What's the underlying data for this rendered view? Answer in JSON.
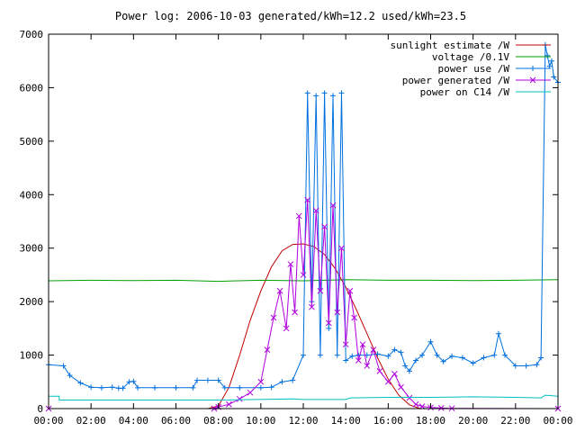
{
  "chart_data": {
    "type": "line",
    "title": "Power log: 2006-10-03 generated/kWh=12.2 used/kWh=23.5",
    "xlabel": "",
    "ylabel": "",
    "xlim": [
      0,
      24
    ],
    "ylim": [
      0,
      7000
    ],
    "x_tick_labels": [
      "00:00",
      "02:00",
      "04:00",
      "06:00",
      "08:00",
      "10:00",
      "12:00",
      "14:00",
      "16:00",
      "18:00",
      "20:00",
      "22:00",
      "00:00"
    ],
    "y_tick_labels": [
      "0",
      "1000",
      "2000",
      "3000",
      "4000",
      "5000",
      "6000",
      "7000"
    ],
    "legend_position": "top-right",
    "grid": false,
    "series": [
      {
        "name": "sunlight estimate /W",
        "color": "#c00000",
        "marker": "none",
        "points": [
          [
            0,
            0
          ],
          [
            7.5,
            0
          ],
          [
            8,
            50
          ],
          [
            8.5,
            400
          ],
          [
            9,
            1000
          ],
          [
            9.5,
            1650
          ],
          [
            10,
            2200
          ],
          [
            10.5,
            2650
          ],
          [
            11,
            2950
          ],
          [
            11.5,
            3070
          ],
          [
            12,
            3080
          ],
          [
            12.5,
            3030
          ],
          [
            13,
            2880
          ],
          [
            13.5,
            2620
          ],
          [
            14,
            2270
          ],
          [
            14.5,
            1850
          ],
          [
            15,
            1400
          ],
          [
            15.5,
            950
          ],
          [
            16,
            550
          ],
          [
            16.5,
            250
          ],
          [
            17,
            70
          ],
          [
            17.5,
            0
          ],
          [
            24,
            0
          ]
        ]
      },
      {
        "name": "voltage /0.1V",
        "color": "#00a000",
        "marker": "none",
        "points": [
          [
            0,
            2390
          ],
          [
            2,
            2400
          ],
          [
            4,
            2395
          ],
          [
            6,
            2400
          ],
          [
            8,
            2380
          ],
          [
            10,
            2400
          ],
          [
            12,
            2390
          ],
          [
            14,
            2410
          ],
          [
            16,
            2400
          ],
          [
            18,
            2400
          ],
          [
            20,
            2395
          ],
          [
            22,
            2400
          ],
          [
            24,
            2410
          ]
        ]
      },
      {
        "name": "power use /W",
        "color": "#0070e0",
        "marker": "plus",
        "points": [
          [
            0,
            820
          ],
          [
            0.7,
            800
          ],
          [
            1,
            620
          ],
          [
            1.5,
            480
          ],
          [
            2,
            400
          ],
          [
            2.5,
            390
          ],
          [
            3,
            400
          ],
          [
            3.3,
            380
          ],
          [
            3.5,
            380
          ],
          [
            3.8,
            500
          ],
          [
            4,
            510
          ],
          [
            4.2,
            390
          ],
          [
            5,
            390
          ],
          [
            6,
            390
          ],
          [
            6.8,
            390
          ],
          [
            7,
            530
          ],
          [
            7.5,
            530
          ],
          [
            8,
            530
          ],
          [
            8.3,
            390
          ],
          [
            9,
            390
          ],
          [
            10,
            390
          ],
          [
            10.5,
            400
          ],
          [
            11,
            500
          ],
          [
            11.5,
            530
          ],
          [
            12,
            1000
          ],
          [
            12.2,
            5900
          ],
          [
            12.4,
            2000
          ],
          [
            12.6,
            5850
          ],
          [
            12.8,
            1000
          ],
          [
            13,
            5900
          ],
          [
            13.2,
            1500
          ],
          [
            13.4,
            5850
          ],
          [
            13.6,
            1000
          ],
          [
            13.8,
            5900
          ],
          [
            14,
            900
          ],
          [
            14.3,
            980
          ],
          [
            14.6,
            1000
          ],
          [
            15,
            1000
          ],
          [
            15.5,
            1020
          ],
          [
            16,
            980
          ],
          [
            16.3,
            1100
          ],
          [
            16.6,
            1050
          ],
          [
            16.8,
            800
          ],
          [
            17,
            700
          ],
          [
            17.3,
            900
          ],
          [
            17.6,
            1000
          ],
          [
            18,
            1250
          ],
          [
            18.3,
            1000
          ],
          [
            18.6,
            880
          ],
          [
            19,
            980
          ],
          [
            19.5,
            950
          ],
          [
            20,
            850
          ],
          [
            20.5,
            950
          ],
          [
            21,
            1000
          ],
          [
            21.2,
            1400
          ],
          [
            21.5,
            1000
          ],
          [
            22,
            800
          ],
          [
            22.5,
            800
          ],
          [
            23,
            820
          ],
          [
            23.2,
            950
          ],
          [
            23.4,
            6800
          ],
          [
            23.5,
            6600
          ],
          [
            23.6,
            6400
          ],
          [
            23.7,
            6500
          ],
          [
            23.8,
            6200
          ],
          [
            24,
            6100
          ]
        ]
      },
      {
        "name": "power generated /W",
        "color": "#b000e0",
        "marker": "x",
        "points": [
          [
            0,
            0
          ],
          [
            7.8,
            0
          ],
          [
            8,
            30
          ],
          [
            8.5,
            80
          ],
          [
            9,
            180
          ],
          [
            9.5,
            300
          ],
          [
            10,
            500
          ],
          [
            10.3,
            1100
          ],
          [
            10.6,
            1700
          ],
          [
            10.9,
            2200
          ],
          [
            11.2,
            1500
          ],
          [
            11.4,
            2700
          ],
          [
            11.6,
            1800
          ],
          [
            11.8,
            3600
          ],
          [
            12,
            2500
          ],
          [
            12.2,
            3900
          ],
          [
            12.4,
            1900
          ],
          [
            12.6,
            3700
          ],
          [
            12.8,
            2200
          ],
          [
            13,
            3400
          ],
          [
            13.2,
            1600
          ],
          [
            13.4,
            3800
          ],
          [
            13.6,
            1800
          ],
          [
            13.8,
            3000
          ],
          [
            14,
            1200
          ],
          [
            14.2,
            2200
          ],
          [
            14.4,
            1700
          ],
          [
            14.6,
            900
          ],
          [
            14.8,
            1200
          ],
          [
            15,
            800
          ],
          [
            15.3,
            1100
          ],
          [
            15.6,
            700
          ],
          [
            16,
            500
          ],
          [
            16.3,
            650
          ],
          [
            16.6,
            400
          ],
          [
            17,
            200
          ],
          [
            17.3,
            80
          ],
          [
            17.6,
            40
          ],
          [
            18,
            20
          ],
          [
            18.5,
            10
          ],
          [
            19,
            5
          ],
          [
            24,
            0
          ]
        ]
      },
      {
        "name": "power on C14 /W",
        "color": "#00c0c0",
        "marker": "none",
        "points": [
          [
            0,
            230
          ],
          [
            0.5,
            230
          ],
          [
            0.5,
            160
          ],
          [
            7.8,
            160
          ],
          [
            8,
            160
          ],
          [
            11.5,
            180
          ],
          [
            12,
            170
          ],
          [
            14,
            170
          ],
          [
            14.2,
            200
          ],
          [
            16,
            210
          ],
          [
            18,
            210
          ],
          [
            20,
            220
          ],
          [
            22,
            210
          ],
          [
            23.2,
            200
          ],
          [
            23.4,
            250
          ],
          [
            24,
            230
          ]
        ]
      }
    ]
  }
}
